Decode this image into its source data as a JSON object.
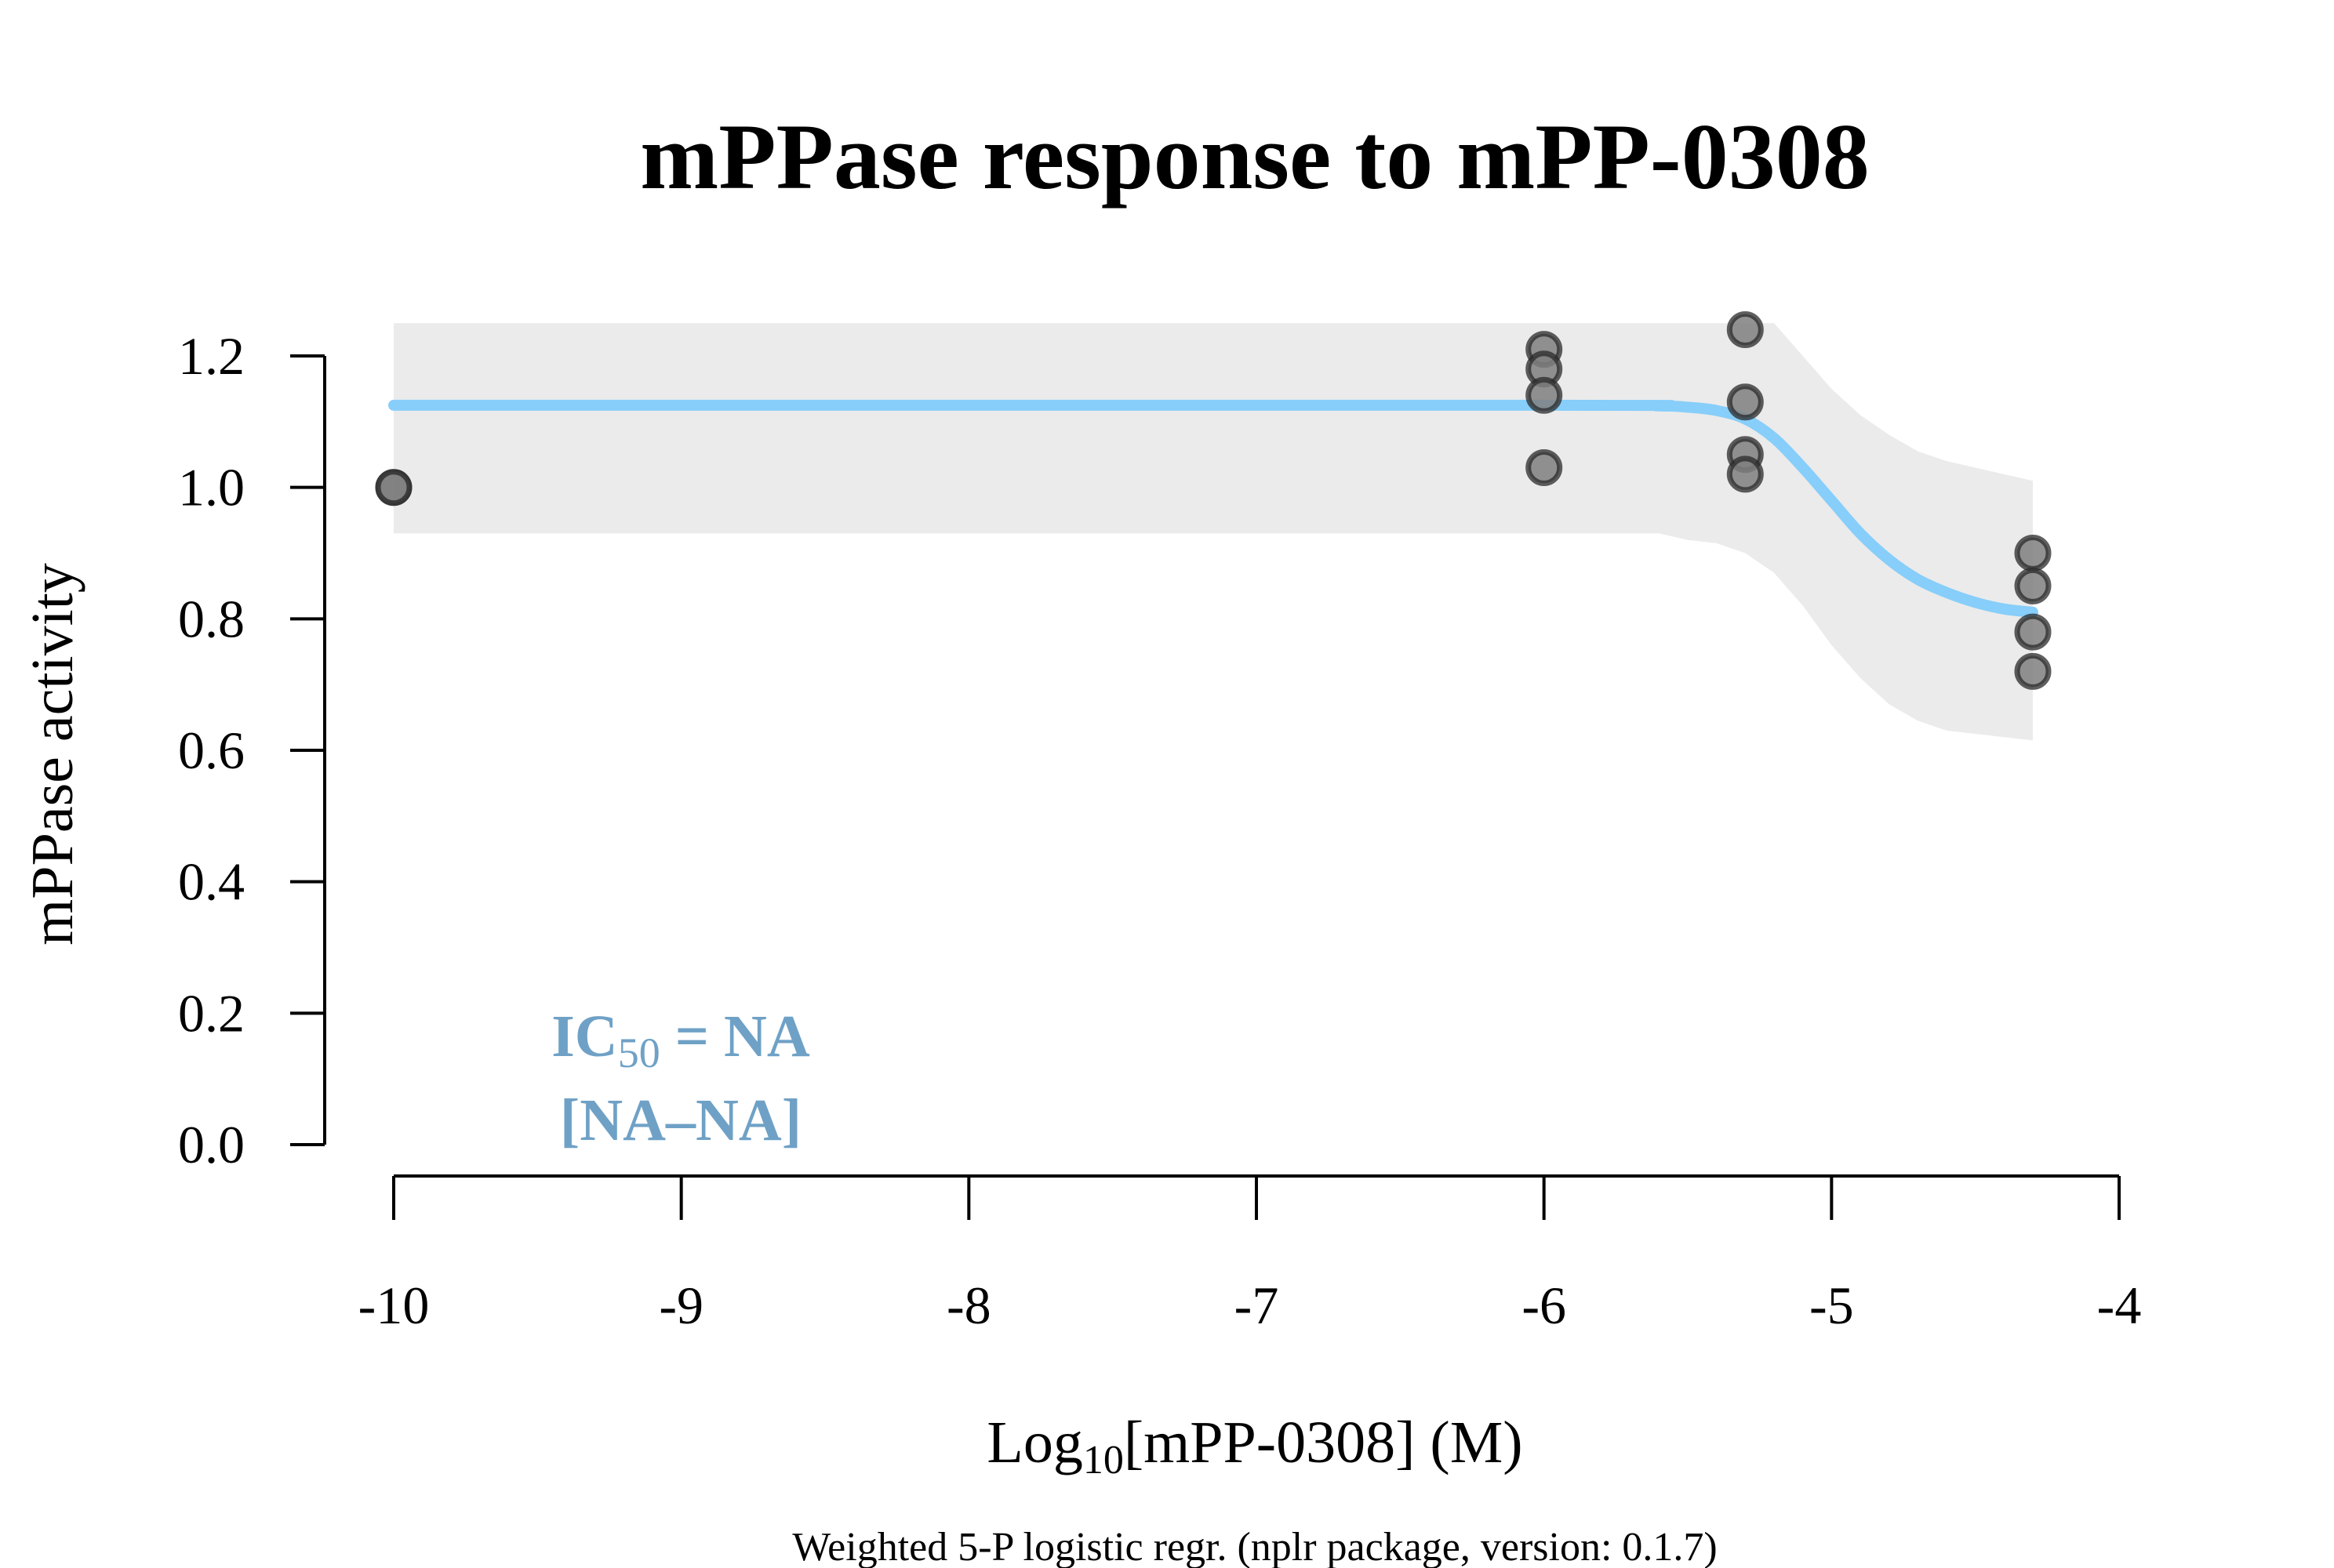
{
  "chart_data": {
    "type": "scatter",
    "title": "mPPase response to mPP-0308",
    "xlabel_prefix": "Log",
    "xlabel_sub": "10",
    "xlabel_suffix": "[mPP-0308] (M)",
    "ylabel": "mPPase activity",
    "footnote": "Weighted 5-P logistic regr. (nplr package, version: 0.1.7)",
    "xlim": [
      -10,
      -4
    ],
    "ylim": [
      0,
      1.2
    ],
    "x_ticks": [
      -10,
      -9,
      -8,
      -7,
      -6,
      -5,
      -4
    ],
    "y_ticks": [
      0.0,
      0.2,
      0.4,
      0.6,
      0.8,
      1.0,
      1.2
    ],
    "x_tick_labels": [
      "-10",
      "-9",
      "-8",
      "-7",
      "-6",
      "-5",
      "-4"
    ],
    "y_tick_labels": [
      "0.0",
      "0.2",
      "0.4",
      "0.6",
      "0.8",
      "1.0",
      "1.2"
    ],
    "points": [
      {
        "x": -10.0,
        "y": 1.0
      },
      {
        "x": -10.0,
        "y": 1.0
      },
      {
        "x": -6.0,
        "y": 1.21
      },
      {
        "x": -6.0,
        "y": 1.18
      },
      {
        "x": -6.0,
        "y": 1.14
      },
      {
        "x": -6.0,
        "y": 1.03
      },
      {
        "x": -5.3,
        "y": 1.24
      },
      {
        "x": -5.3,
        "y": 1.13
      },
      {
        "x": -5.3,
        "y": 1.05
      },
      {
        "x": -5.3,
        "y": 1.02
      },
      {
        "x": -4.3,
        "y": 0.9
      },
      {
        "x": -4.3,
        "y": 0.85
      },
      {
        "x": -4.3,
        "y": 0.78
      },
      {
        "x": -4.3,
        "y": 0.72
      }
    ],
    "fit_curve": {
      "x": [
        -10.0,
        -6.0,
        -5.6,
        -5.5,
        -5.4,
        -5.3,
        -5.2,
        -5.1,
        -5.0,
        -4.9,
        -4.8,
        -4.7,
        -4.6,
        -4.5,
        -4.4,
        -4.3
      ],
      "y": [
        1.125,
        1.125,
        1.124,
        1.122,
        1.117,
        1.104,
        1.075,
        1.03,
        0.98,
        0.93,
        0.89,
        0.86,
        0.84,
        0.825,
        0.815,
        0.81
      ]
    },
    "confidence_band": {
      "x": [
        -10.0,
        -6.0,
        -5.6,
        -5.5,
        -5.4,
        -5.3,
        -5.2,
        -5.1,
        -5.0,
        -4.9,
        -4.8,
        -4.7,
        -4.6,
        -4.5,
        -4.4,
        -4.3
      ],
      "upper": [
        1.25,
        1.25,
        1.25,
        1.25,
        1.25,
        1.25,
        1.25,
        1.2,
        1.15,
        1.11,
        1.08,
        1.055,
        1.04,
        1.03,
        1.02,
        1.01
      ],
      "lower": [
        0.93,
        0.93,
        0.93,
        0.92,
        0.915,
        0.9,
        0.87,
        0.82,
        0.76,
        0.71,
        0.67,
        0.645,
        0.63,
        0.625,
        0.62,
        0.615
      ]
    },
    "annotation": {
      "line1_prefix": "IC",
      "line1_sub": "50",
      "line1_suffix": " = NA",
      "line2": "[NA–NA]"
    },
    "grid": false,
    "legend": "none"
  },
  "colors": {
    "curve": "#87CEFA",
    "band": "#EBEBEB",
    "point_fill": "#7F7F7F",
    "point_stroke": "#2A2A2A",
    "annotation": "#6FA1C6"
  }
}
